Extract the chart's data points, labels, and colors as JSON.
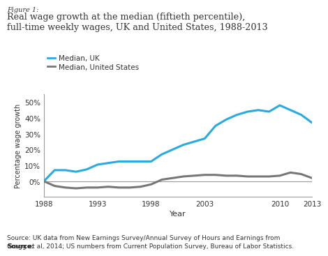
{
  "figure_label": "Figure 1:",
  "title_line1": "Real wage growth at the median (fiftieth percentile),",
  "title_line2": "full-time weekly wages, UK and United States, 1988-2013",
  "xlabel": "Year",
  "ylabel": "Percentage wage growth",
  "source_bold": "Source:",
  "source_rest": " UK data from New Earnings Survey/Annual Survey of Hours and Earnings from\nGregg et al, 2014; US numbers from Current Population Survey, Bureau of Labor Statistics.",
  "legend_uk": "Median, UK",
  "legend_us": "Median, United States",
  "color_uk": "#29ABE2",
  "color_us": "#777777",
  "uk_years": [
    1988,
    1989,
    1990,
    1991,
    1992,
    1993,
    1994,
    1995,
    1996,
    1997,
    1998,
    1999,
    2000,
    2001,
    2002,
    2003,
    2004,
    2005,
    2006,
    2007,
    2008,
    2009,
    2010,
    2011,
    2012,
    2013
  ],
  "uk_values": [
    0,
    7,
    7,
    6,
    7.5,
    10.5,
    11.5,
    12.5,
    12.5,
    12.5,
    12.5,
    17,
    20,
    23,
    25,
    27,
    35,
    39,
    42,
    44,
    45,
    44,
    48,
    45,
    42,
    37
  ],
  "us_years": [
    1988,
    1989,
    1990,
    1991,
    1992,
    1993,
    1994,
    1995,
    1996,
    1997,
    1998,
    1999,
    2000,
    2001,
    2002,
    2003,
    2004,
    2005,
    2006,
    2007,
    2008,
    2009,
    2010,
    2011,
    2012,
    2013
  ],
  "us_values": [
    0,
    -3,
    -4,
    -4.5,
    -4,
    -4,
    -3.5,
    -4,
    -4,
    -3.5,
    -2,
    1,
    2,
    3,
    3.5,
    4,
    4,
    3.5,
    3.5,
    3,
    3,
    3,
    3.5,
    5.5,
    4.5,
    2
  ],
  "xlim": [
    1988,
    2013
  ],
  "ylim": [
    -10,
    55
  ],
  "yticks": [
    0,
    10,
    20,
    30,
    40,
    50
  ],
  "xticks": [
    1988,
    1993,
    1998,
    2003,
    2010,
    2013
  ],
  "background_color": "#FFFFFF",
  "title_color": "#333333",
  "axis_color": "#999999",
  "line_width": 2.2
}
